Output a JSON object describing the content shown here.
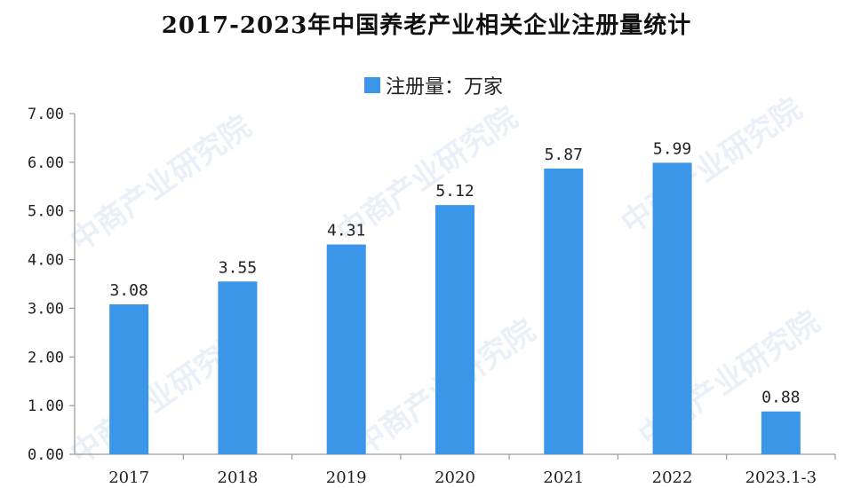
{
  "colors": {
    "bar": "#3b95e8",
    "axis": "#9a9a9a",
    "text": "#222222"
  },
  "watermark": "中商产业研究院",
  "chart_data": {
    "type": "bar",
    "title": "2017-2023年中国养老产业相关企业注册量统计",
    "legend": {
      "position": "top-center",
      "entries": [
        "注册量：万家"
      ]
    },
    "categories": [
      "2017",
      "2018",
      "2019",
      "2020",
      "2021",
      "2022",
      "2023.1-3"
    ],
    "series": [
      {
        "name": "注册量：万家",
        "values": [
          3.08,
          3.55,
          4.31,
          5.12,
          5.87,
          5.99,
          0.88
        ]
      }
    ],
    "value_labels": [
      "3.08",
      "3.55",
      "4.31",
      "5.12",
      "5.87",
      "5.99",
      "0.88"
    ],
    "y_ticks": [
      "0.00",
      "1.00",
      "2.00",
      "3.00",
      "4.00",
      "5.00",
      "6.00",
      "7.00"
    ],
    "ylim": [
      0,
      7
    ],
    "grid": false
  }
}
